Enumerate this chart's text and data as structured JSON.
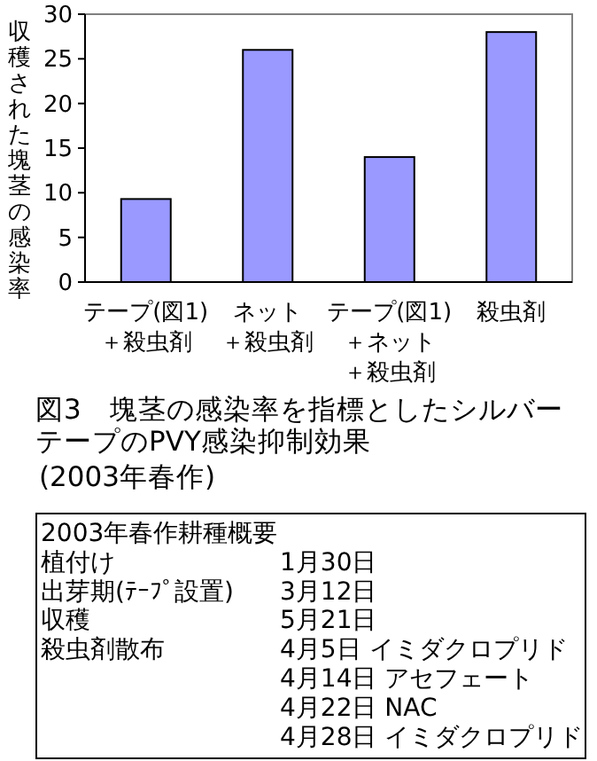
{
  "chart_data": {
    "type": "bar",
    "title": "図3　塊茎の感染率を指標としたシルバーテープのPVY感染抑制効果",
    "subtitle": "(2003年春作)",
    "ylabel": "収穫された塊茎の感染率",
    "categories": [
      "テープ(図1)＋殺虫剤",
      "ネット＋殺虫剤",
      "テープ(図1)＋ネット＋殺虫剤",
      "殺虫剤"
    ],
    "values": [
      9.3,
      26,
      14,
      28
    ],
    "color": "#9999ff",
    "ylim": [
      0,
      30
    ],
    "yticks": [
      0,
      5,
      10,
      15,
      20,
      25,
      30
    ],
    "annotations": [
      "2003年春作耕種概要",
      "植付け",
      "1月30日",
      "出芽期(ﾃｰﾌﾟ設置)",
      "3月12日",
      "収穫",
      "5月21日",
      "殺虫剤散布",
      "4月5日 イミダクロプリド",
      "4月14日 アセフェート",
      "4月22日 NAC",
      "4月28日 イミダクロプリド"
    ]
  }
}
